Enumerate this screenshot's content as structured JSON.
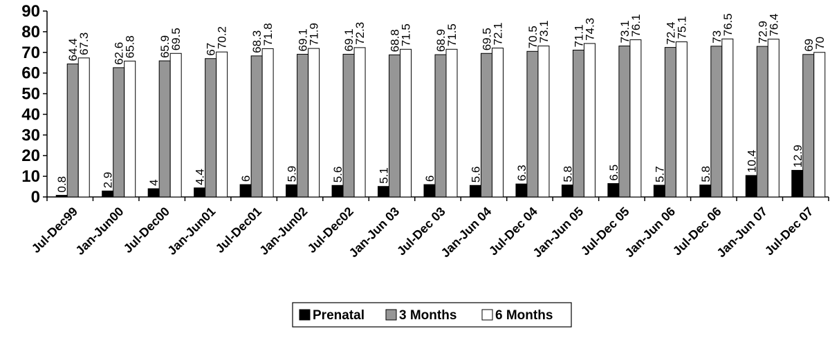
{
  "chart_data": {
    "type": "bar",
    "categories": [
      "Jul-Dec99",
      "Jan-Jun00",
      "Jul-Dec00",
      "Jan-Jun01",
      "Jul-Dec01",
      "Jan-Jun02",
      "Jul-Dec02",
      "Jan-Jun 03",
      "Jul-Dec 03",
      "Jan-Jun 04",
      "Jul-Dec 04",
      "Jan-Jun 05",
      "Jul-Dec 05",
      "Jan-Jun 06",
      "Jul-Dec 06",
      "Jan-Jun 07",
      "Jul-Dec 07"
    ],
    "series": [
      {
        "name": "Prenatal",
        "color": "#000000",
        "values": [
          0.8,
          2.9,
          4,
          4.4,
          6,
          5.9,
          5.6,
          5.1,
          6,
          5.6,
          6.3,
          5.8,
          6.5,
          5.7,
          5.8,
          10.4,
          12.9
        ]
      },
      {
        "name": "3 Months",
        "color": "#969696",
        "values": [
          64.4,
          62.6,
          65.9,
          67,
          68.3,
          69.1,
          69.1,
          68.8,
          68.9,
          69.5,
          70.5,
          71.1,
          73.1,
          72.4,
          73,
          72.9,
          69
        ]
      },
      {
        "name": "6 Months",
        "color": "#ffffff",
        "values": [
          67.3,
          65.8,
          69.5,
          70.2,
          71.8,
          71.9,
          72.3,
          71.5,
          71.5,
          72.1,
          73.1,
          74.3,
          76.1,
          75.1,
          76.5,
          76.4,
          70
        ]
      }
    ],
    "yticks": [
      0,
      10,
      20,
      30,
      40,
      50,
      60,
      70,
      80,
      90
    ],
    "ylim": [
      0,
      90
    ],
    "grid": false,
    "legend_position": "bottom"
  }
}
